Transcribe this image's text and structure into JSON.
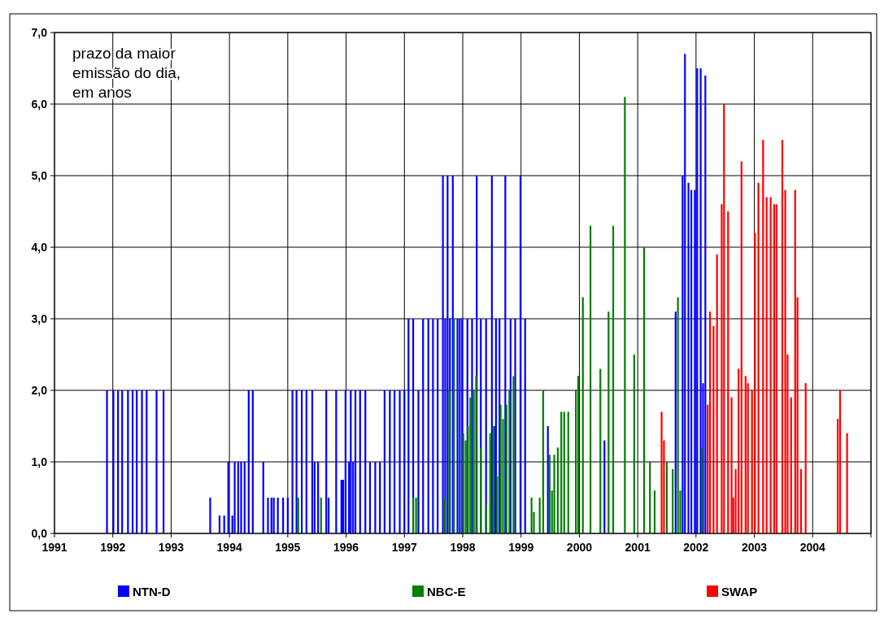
{
  "chart_data": {
    "type": "bar",
    "annotations": [
      "prazo da maior emissão do dia, em anos"
    ],
    "xlim": [
      1991,
      2005
    ],
    "xticks": [
      1991,
      1992,
      1993,
      1994,
      1995,
      1996,
      1997,
      1998,
      1999,
      2000,
      2001,
      2002,
      2003,
      2004,
      {
        "value": 2005,
        "label": null
      }
    ],
    "ylim": [
      0,
      7
    ],
    "yticks": [
      {
        "value": 0,
        "label": "0,0"
      },
      {
        "value": 1,
        "label": "1,0"
      },
      {
        "value": 2,
        "label": "2,0"
      },
      {
        "value": 3,
        "label": "3,0"
      },
      {
        "value": 4,
        "label": "4,0"
      },
      {
        "value": 5,
        "label": "5,0"
      },
      {
        "value": 6,
        "label": "6,0"
      },
      {
        "value": 7,
        "label": "7,0"
      }
    ],
    "grid": true,
    "legend": "bottom",
    "series": [
      {
        "name": "NTN-D",
        "color": "#0000ff",
        "x": [
          1991.9,
          1992.01,
          1992.09,
          1992.16,
          1992.26,
          1992.34,
          1992.41,
          1992.5,
          1992.58,
          1992.75,
          1992.87,
          1993.67,
          1993.83,
          1993.91,
          1993.98,
          1994.05,
          1994.09,
          1994.15,
          1994.2,
          1994.26,
          1994.33,
          1994.4,
          1994.58,
          1994.66,
          1994.72,
          1994.76,
          1994.83,
          1994.92,
          1995.0,
          1995.08,
          1995.15,
          1995.24,
          1995.32,
          1995.42,
          1995.46,
          1995.52,
          1995.66,
          1995.7,
          1995.83,
          1995.92,
          1995.95,
          1995.99,
          1996.05,
          1996.08,
          1996.12,
          1996.16,
          1996.24,
          1996.33,
          1996.41,
          1996.5,
          1996.58,
          1996.66,
          1996.75,
          1996.83,
          1996.92,
          1997.0,
          1997.07,
          1997.15,
          1997.24,
          1997.32,
          1997.41,
          1997.49,
          1997.57,
          1997.66,
          1997.7,
          1997.74,
          1997.78,
          1997.83,
          1997.91,
          1997.95,
          1997.99,
          1998.08,
          1998.16,
          1998.24,
          1998.31,
          1998.4,
          1998.5,
          1998.555,
          1998.57,
          1998.63,
          1998.73,
          1998.82,
          1998.9,
          1998.99,
          1999.07,
          1999.46,
          2000.43,
          2001.65,
          2001.77,
          2001.81,
          2001.87,
          2001.92,
          2001.98,
          2002.02,
          2002.08,
          2002.12,
          2002.16
        ],
        "values": [
          2,
          2,
          2,
          2,
          2,
          2,
          2,
          2,
          2,
          2,
          2,
          0.5,
          0.25,
          0.25,
          1,
          0.25,
          1,
          1,
          1,
          1,
          2,
          2,
          1,
          0.5,
          0.5,
          0.5,
          0.5,
          0.5,
          0.5,
          2,
          2,
          2,
          2,
          2,
          1,
          1,
          2,
          0.5,
          2,
          0.75,
          0.75,
          2,
          1,
          2,
          1,
          2,
          2,
          2,
          1,
          1,
          1,
          2,
          2,
          2,
          2,
          2,
          3,
          3,
          2,
          3,
          3,
          3,
          3,
          5,
          3,
          5,
          3,
          5,
          3,
          3,
          3,
          3,
          3,
          5,
          3,
          3,
          5,
          1.5,
          3,
          3,
          5,
          3,
          3,
          5,
          3,
          1.5,
          1.3,
          3.1,
          5,
          6.7,
          4.9,
          4.8,
          4.8,
          6.5,
          6.5,
          2.1,
          6.4
        ]
      },
      {
        "name": "NBC-E",
        "color": "#008000",
        "x": [
          1995.18,
          1995.57,
          1997.15,
          1997.2,
          1997.69,
          1997.77,
          1997.85,
          1998.01,
          1998.05,
          1998.09,
          1998.13,
          1998.19,
          1998.23,
          1998.31,
          1998.4,
          1998.47,
          1998.525,
          1998.59,
          1998.65,
          1998.69,
          1998.75,
          1998.8,
          1998.87,
          1999.18,
          1999.22,
          1999.32,
          1999.38,
          1999.49,
          1999.53,
          1999.57,
          1999.63,
          1999.69,
          1999.74,
          1999.81,
          1999.94,
          1999.98,
          2000.06,
          2000.19,
          2000.36,
          2000.5,
          2000.58,
          2000.78,
          2000.94,
          2001.11,
          2001.21,
          2001.29,
          2001.5,
          2001.6,
          2001.69,
          2001.73,
          2002.1
        ],
        "values": [
          0.5,
          0.5,
          0.5,
          0.5,
          0.5,
          2,
          3,
          1.4,
          1.3,
          1.5,
          1.9,
          2,
          2.2,
          1.2,
          0.4,
          1.4,
          1.5,
          0.8,
          1.8,
          1.6,
          1.8,
          2,
          2.2,
          0.5,
          0.3,
          0.5,
          2,
          1.1,
          0.6,
          1.1,
          1.2,
          1.7,
          1.7,
          1.7,
          2,
          2.2,
          3.3,
          4.3,
          2.3,
          3.1,
          4.3,
          6.1,
          2.5,
          4,
          1,
          0.6,
          1,
          0.9,
          3.3,
          0.6,
          1.2
        ]
      },
      {
        "name": "SWAP",
        "color": "#ff0000",
        "x": [
          2001.41,
          2001.45,
          2002.2,
          2002.24,
          2002.3,
          2002.36,
          2002.44,
          2002.48,
          2002.55,
          2002.61,
          2002.64,
          2002.68,
          2002.73,
          2002.78,
          2002.85,
          2002.89,
          2002.96,
          2003.01,
          2003.07,
          2003.15,
          2003.21,
          2003.28,
          2003.34,
          2003.38,
          2003.48,
          2003.53,
          2003.57,
          2003.63,
          2003.7,
          2003.74,
          2003.8,
          2003.88,
          2004.43,
          2004.47,
          2004.59
        ],
        "values": [
          1.7,
          1.3,
          1.8,
          3.1,
          2.9,
          3.9,
          4.6,
          6,
          4.5,
          1.9,
          0.5,
          0.9,
          2.3,
          5.2,
          2.2,
          2.1,
          2,
          4.2,
          4.9,
          5.5,
          4.7,
          4.7,
          4.6,
          4.6,
          5.5,
          4.8,
          2.5,
          1.9,
          4.8,
          3.3,
          0.9,
          2.1,
          1.6,
          2,
          1.4
        ]
      }
    ]
  }
}
